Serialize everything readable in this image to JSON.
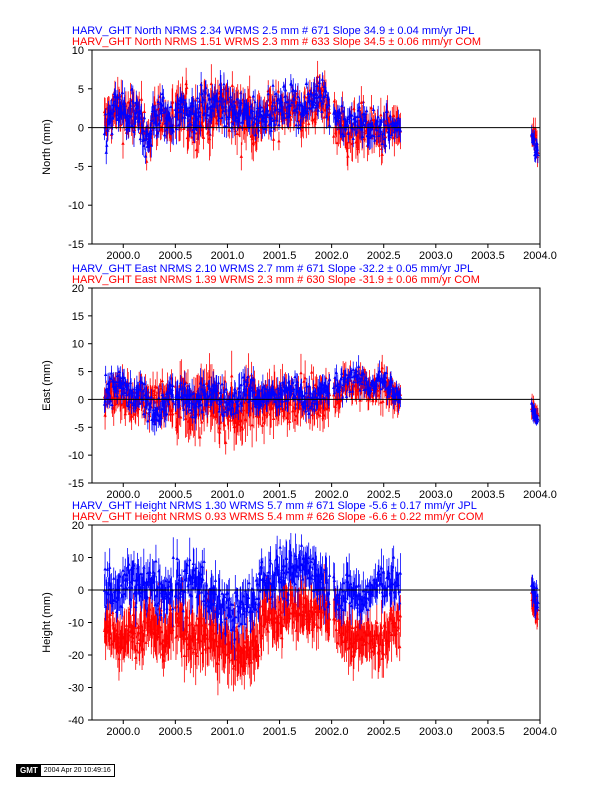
{
  "chart_data": [
    {
      "type": "scatter",
      "panel": "north",
      "title_lines": [
        {
          "text": "HARV_GHT North NRMS 2.34 WRMS  2.5 mm # 671 Slope   34.9 ±  0.04 mm/yr JPL",
          "color": "#0000ff"
        },
        {
          "text": "HARV_GHT North NRMS 1.51 WRMS  2.3 mm # 633 Slope   34.5 ±  0.06 mm/yr COM",
          "color": "#ff0000"
        }
      ],
      "ylabel": "North (mm)",
      "xlim": [
        1999.7,
        2004.0
      ],
      "ylim": [
        -15,
        10
      ],
      "yticks": [
        10,
        5,
        0,
        -5,
        -10,
        -15
      ],
      "xticks": [
        "2000.0",
        "2000.5",
        "2001.0",
        "2001.5",
        "2002.0",
        "2002.5",
        "2003.0",
        "2003.5",
        "2004.0"
      ],
      "series": [
        {
          "color": "#ff0000",
          "segments": [
            {
              "x_start": 1999.82,
              "x_end": 2000.48,
              "base": [
                0.5,
                1.5,
                2.5,
                2.0,
                1.0,
                2.0,
                0.0,
                -1.0,
                1.0,
                2.0,
                0.5,
                1.0
              ],
              "scatter": 2.2,
              "err": 1.4,
              "n": 120
            },
            {
              "x_start": 2000.5,
              "x_end": 2001.3,
              "base": [
                1.0,
                2.0,
                0.5,
                2.0,
                1.5,
                3.0,
                2.5,
                1.0,
                2.0,
                0.5
              ],
              "scatter": 2.4,
              "err": 1.8,
              "n": 140
            },
            {
              "x_start": 2001.3,
              "x_end": 2001.98,
              "base": [
                1.0,
                2.0,
                1.5,
                3.0,
                2.5,
                1.5,
                3.0,
                4.0,
                2.0
              ],
              "scatter": 2.0,
              "err": 1.4,
              "n": 120
            },
            {
              "x_start": 2002.02,
              "x_end": 2002.66,
              "base": [
                1.0,
                0.0,
                -1.0,
                0.5,
                -0.5,
                -1.0,
                0.0,
                -0.5
              ],
              "scatter": 2.0,
              "err": 1.5,
              "n": 100
            },
            {
              "x_start": 2003.92,
              "x_end": 2003.98,
              "base": [
                -1.0,
                -2.0,
                -3.0
              ],
              "scatter": 1.2,
              "err": 1.0,
              "n": 15
            }
          ]
        },
        {
          "color": "#0000ff",
          "segments": [
            {
              "x_start": 1999.82,
              "x_end": 2000.48,
              "base": [
                -1.0,
                1.0,
                2.5,
                2.0,
                1.0,
                1.5,
                -0.5,
                -1.0,
                1.0,
                2.0,
                1.0,
                1.5
              ],
              "scatter": 2.0,
              "err": 1.2,
              "n": 120
            },
            {
              "x_start": 2000.5,
              "x_end": 2001.3,
              "base": [
                2.0,
                2.5,
                1.5,
                3.0,
                2.5,
                3.0,
                2.0,
                1.5,
                2.0,
                1.0
              ],
              "scatter": 1.8,
              "err": 1.2,
              "n": 140
            },
            {
              "x_start": 2001.3,
              "x_end": 2001.98,
              "base": [
                1.5,
                2.5,
                2.0,
                3.0,
                3.5,
                2.0,
                3.5,
                5.0,
                2.5
              ],
              "scatter": 1.6,
              "err": 1.0,
              "n": 120
            },
            {
              "x_start": 2002.02,
              "x_end": 2002.66,
              "base": [
                2.0,
                1.0,
                0.0,
                1.0,
                0.0,
                -0.5,
                0.5,
                -1.0
              ],
              "scatter": 1.6,
              "err": 1.0,
              "n": 100
            },
            {
              "x_start": 2003.92,
              "x_end": 2003.98,
              "base": [
                -1.5,
                -2.5,
                -3.0
              ],
              "scatter": 1.0,
              "err": 0.8,
              "n": 15
            }
          ]
        }
      ]
    },
    {
      "type": "scatter",
      "panel": "east",
      "title_lines": [
        {
          "text": "HARV_GHT East NRMS 2.10 WRMS  2.7 mm # 671 Slope  -32.2 ±  0.05 mm/yr JPL",
          "color": "#0000ff"
        },
        {
          "text": "HARV_GHT East NRMS 1.39 WRMS  2.3 mm # 630 Slope  -31.9 ±  0.06 mm/yr COM",
          "color": "#ff0000"
        }
      ],
      "ylabel": "East (mm)",
      "xlim": [
        1999.7,
        2004.0
      ],
      "ylim": [
        -15,
        20
      ],
      "yticks": [
        20,
        15,
        10,
        5,
        0,
        -5,
        -10,
        -15
      ],
      "xticks": [
        "2000.0",
        "2000.5",
        "2001.0",
        "2001.5",
        "2002.0",
        "2002.5",
        "2003.0",
        "2003.5",
        "2004.0"
      ],
      "series": [
        {
          "color": "#ff0000",
          "segments": [
            {
              "x_start": 1999.82,
              "x_end": 2000.48,
              "base": [
                0.0,
                1.0,
                2.0,
                0.0,
                -1.0,
                0.5,
                -0.5,
                0.0,
                1.0,
                0.0
              ],
              "scatter": 2.4,
              "err": 2.0,
              "n": 120
            },
            {
              "x_start": 2000.5,
              "x_end": 2001.3,
              "base": [
                -1.0,
                0.0,
                -2.0,
                -1.0,
                0.0,
                -2.0,
                -1.0,
                -3.0,
                0.0,
                -1.0
              ],
              "scatter": 3.2,
              "err": 2.8,
              "n": 140
            },
            {
              "x_start": 2001.3,
              "x_end": 2001.98,
              "base": [
                -1.0,
                0.0,
                -1.0,
                0.0,
                1.0,
                -0.5,
                0.0,
                1.0
              ],
              "scatter": 2.6,
              "err": 2.4,
              "n": 120
            },
            {
              "x_start": 2002.02,
              "x_end": 2002.66,
              "base": [
                1.0,
                2.0,
                3.0,
                2.5,
                2.0,
                3.0,
                1.0,
                0.0
              ],
              "scatter": 2.0,
              "err": 1.8,
              "n": 100
            },
            {
              "x_start": 2003.92,
              "x_end": 2003.98,
              "base": [
                -1.0,
                -2.5,
                -3.0
              ],
              "scatter": 1.2,
              "err": 1.2,
              "n": 15
            }
          ]
        },
        {
          "color": "#0000ff",
          "segments": [
            {
              "x_start": 1999.82,
              "x_end": 2000.48,
              "base": [
                0.0,
                1.5,
                3.0,
                1.0,
                0.0,
                1.0,
                -1.0,
                -3.0,
                0.0,
                1.0
              ],
              "scatter": 2.0,
              "err": 1.4,
              "n": 120
            },
            {
              "x_start": 2000.5,
              "x_end": 2001.3,
              "base": [
                0.0,
                1.0,
                -1.0,
                0.0,
                2.0,
                0.0,
                -1.0,
                1.0,
                2.0,
                0.0
              ],
              "scatter": 2.0,
              "err": 1.6,
              "n": 140
            },
            {
              "x_start": 2001.3,
              "x_end": 2001.98,
              "base": [
                0.0,
                1.0,
                0.0,
                2.0,
                1.0,
                0.0,
                1.0,
                2.0
              ],
              "scatter": 1.8,
              "err": 1.4,
              "n": 120
            },
            {
              "x_start": 2002.02,
              "x_end": 2002.66,
              "base": [
                2.0,
                3.0,
                4.0,
                3.0,
                2.5,
                3.5,
                2.0,
                0.0
              ],
              "scatter": 1.6,
              "err": 1.2,
              "n": 100
            },
            {
              "x_start": 2003.92,
              "x_end": 2003.98,
              "base": [
                -1.5,
                -3.0,
                -3.5
              ],
              "scatter": 1.0,
              "err": 1.0,
              "n": 15
            }
          ]
        }
      ]
    },
    {
      "type": "scatter",
      "panel": "height",
      "title_lines": [
        {
          "text": "HARV_GHT Height NRMS 1.30 WRMS  5.7 mm # 671 Slope   -5.6 ±  0.17 mm/yr JPL",
          "color": "#0000ff"
        },
        {
          "text": "HARV_GHT Height NRMS 0.93 WRMS  5.4 mm # 626 Slope   -6.6 ±  0.22 mm/yr COM",
          "color": "#ff0000"
        }
      ],
      "ylabel": "Height (mm)",
      "xlim": [
        1999.7,
        2004.0
      ],
      "ylim": [
        -40,
        20
      ],
      "yticks": [
        20,
        10,
        0,
        -10,
        -20,
        -30,
        -40
      ],
      "xticks": [
        "2000.0",
        "2000.5",
        "2001.0",
        "2001.5",
        "2002.0",
        "2002.5",
        "2003.0",
        "2003.5",
        "2004.0"
      ],
      "series": [
        {
          "color": "#ff0000",
          "segments": [
            {
              "x_start": 1999.82,
              "x_end": 2000.48,
              "base": [
                -10.0,
                -12.0,
                -15.0,
                -12.0,
                -14.0,
                -10.0,
                -12.0,
                -15.0,
                -11.0
              ],
              "scatter": 4.5,
              "err": 5.0,
              "n": 120
            },
            {
              "x_start": 2000.5,
              "x_end": 2001.3,
              "base": [
                -10.0,
                -12.0,
                -14.0,
                -12.0,
                -16.0,
                -18.0,
                -20.0,
                -18.0,
                -15.0
              ],
              "scatter": 5.0,
              "err": 6.0,
              "n": 140
            },
            {
              "x_start": 2001.3,
              "x_end": 2001.98,
              "base": [
                -10.0,
                -6.0,
                -8.0,
                -5.0,
                -6.0,
                -8.0,
                -5.0,
                -8.0
              ],
              "scatter": 4.5,
              "err": 5.0,
              "n": 120
            },
            {
              "x_start": 2002.02,
              "x_end": 2002.66,
              "base": [
                -8.0,
                -12.0,
                -15.0,
                -16.0,
                -14.0,
                -16.0,
                -12.0,
                -10.0
              ],
              "scatter": 4.0,
              "err": 5.0,
              "n": 100
            },
            {
              "x_start": 2003.92,
              "x_end": 2003.98,
              "base": [
                -3.0,
                -6.0,
                -8.0
              ],
              "scatter": 2.5,
              "err": 3.0,
              "n": 15
            }
          ]
        },
        {
          "color": "#0000ff",
          "segments": [
            {
              "x_start": 1999.82,
              "x_end": 2000.48,
              "base": [
                2.0,
                0.0,
                -2.0,
                4.0,
                2.0,
                0.0,
                3.0,
                -4.0,
                2.0
              ],
              "scatter": 5.0,
              "err": 4.0,
              "n": 120
            },
            {
              "x_start": 2000.5,
              "x_end": 2001.3,
              "base": [
                0.0,
                2.0,
                4.0,
                0.0,
                -4.0,
                -6.0,
                -8.0,
                -4.0,
                -2.0
              ],
              "scatter": 5.0,
              "err": 4.0,
              "n": 140
            },
            {
              "x_start": 2001.3,
              "x_end": 2001.98,
              "base": [
                2.0,
                4.0,
                6.0,
                4.0,
                6.0,
                8.0,
                4.0,
                2.0
              ],
              "scatter": 5.0,
              "err": 4.0,
              "n": 120
            },
            {
              "x_start": 2002.02,
              "x_end": 2002.66,
              "base": [
                0.0,
                -2.0,
                0.0,
                -4.0,
                0.0,
                2.0,
                4.0,
                0.0
              ],
              "scatter": 4.5,
              "err": 4.0,
              "n": 100
            },
            {
              "x_start": 2003.92,
              "x_end": 2003.98,
              "base": [
                0.0,
                -2.0,
                -4.0
              ],
              "scatter": 2.5,
              "err": 3.0,
              "n": 15
            }
          ]
        }
      ]
    }
  ],
  "footer": {
    "logo": "GMT",
    "stamp": "2004 Apr 20 10:49:16"
  }
}
